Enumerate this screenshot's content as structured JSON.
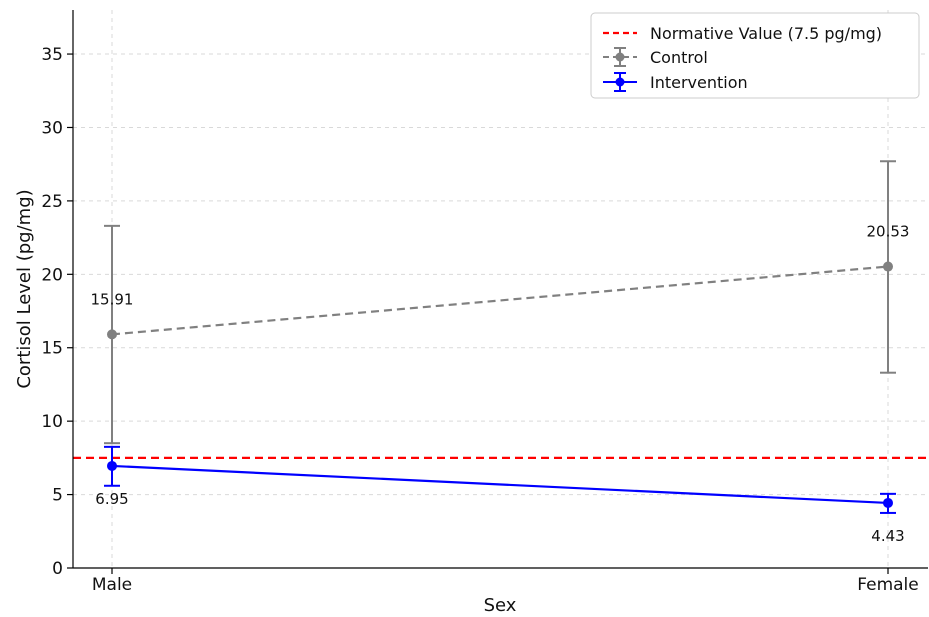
{
  "chart_data": {
    "type": "line",
    "categories": [
      "Male",
      "Female"
    ],
    "xlabel": "Sex",
    "ylabel": "Cortisol Level (pg/mg)",
    "ylim": [
      0,
      38
    ],
    "yticks": [
      0,
      5,
      10,
      15,
      20,
      25,
      30,
      35
    ],
    "grid": true,
    "legend_position": "top-right",
    "reference_line": {
      "name": "Normative Value (7.5 pg/mg)",
      "value": 7.5,
      "style": "dashed",
      "color": "#ff0000"
    },
    "series": [
      {
        "name": "Control",
        "values": [
          15.91,
          20.53
        ],
        "error_low": [
          8.5,
          13.3
        ],
        "error_high": [
          23.3,
          27.7
        ],
        "labels": [
          "15.91",
          "20.53"
        ],
        "style": "dashed",
        "color": "#808080"
      },
      {
        "name": "Intervention",
        "values": [
          6.95,
          4.43
        ],
        "error_low": [
          5.6,
          3.75
        ],
        "error_high": [
          8.25,
          5.05
        ],
        "labels": [
          "6.95",
          "4.43"
        ],
        "style": "solid",
        "color": "#0000ff"
      }
    ]
  }
}
